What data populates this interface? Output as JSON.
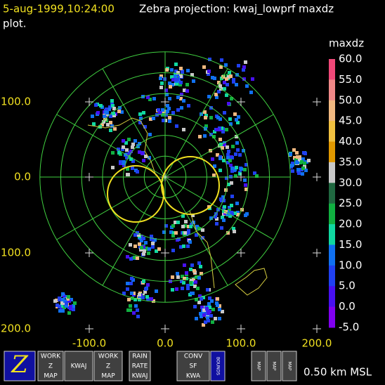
{
  "header": {
    "datetime": "5-aug-1999,10:24:00",
    "title": "Zebra projection: kwaj_lowprf maxdz",
    "subtitle": "plot."
  },
  "colorbar": {
    "label": "maxdz",
    "ticks": [
      "60.0",
      "55.0",
      "50.0",
      "45.0",
      "40.0",
      "35.0",
      "30.0",
      "25.0",
      "20.0",
      "15.0",
      "10.0",
      "5.0",
      "0.0",
      "-5.0"
    ],
    "colors": [
      "#f04878",
      "#f08888",
      "#f0b880",
      "#f0c040",
      "#e09800",
      "#c8c8c8",
      "#206840",
      "#10b040",
      "#10d8a0",
      "#1070f0",
      "#2040f0",
      "#4810f0",
      "#8000f0"
    ]
  },
  "axes": {
    "x_labels": [
      "-100.0",
      "0.0",
      "100.0",
      "200.0"
    ],
    "y_labels": [
      "100.0",
      "0.0",
      "100.0",
      "200.0"
    ]
  },
  "toolbar": {
    "buttons": [
      {
        "lines": [
          "WORK",
          "Z",
          "MAP"
        ]
      },
      {
        "lines": [
          "KWAJ"
        ]
      },
      {
        "lines": [
          "WORK",
          "Z",
          "MAP"
        ]
      },
      {
        "lines": [
          "RAIN",
          "RATE",
          "KWAJ"
        ]
      },
      {
        "lines": [
          "CONV",
          "SF",
          "KWA"
        ]
      },
      {
        "lines": [
          "BOUNDS"
        ]
      },
      {
        "lines": [
          "MAP"
        ]
      },
      {
        "lines": [
          "MAP"
        ]
      },
      {
        "lines": [
          "MAP"
        ]
      }
    ],
    "status": "0.50 km MSL"
  }
}
